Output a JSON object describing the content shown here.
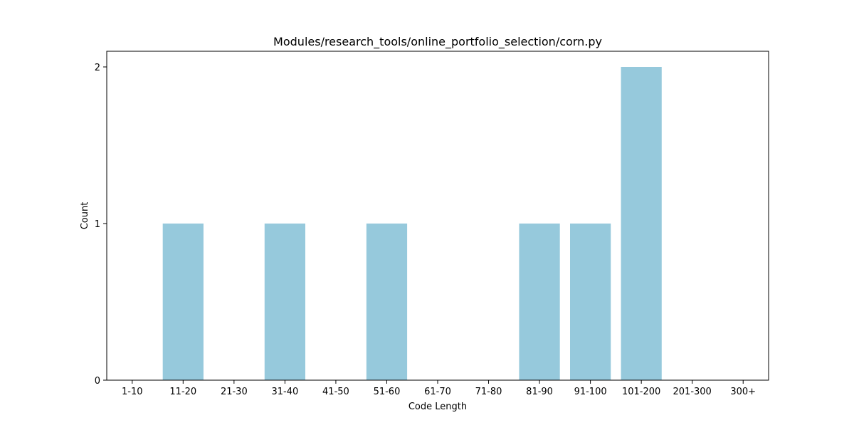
{
  "chart_data": {
    "type": "bar",
    "title": "Modules/research_tools/online_portfolio_selection/corn.py",
    "xlabel": "Code Length",
    "ylabel": "Count",
    "categories": [
      "1-10",
      "11-20",
      "21-30",
      "31-40",
      "41-50",
      "51-60",
      "61-70",
      "71-80",
      "81-90",
      "91-100",
      "101-200",
      "201-300",
      "300+"
    ],
    "values": [
      0,
      1,
      0,
      1,
      0,
      1,
      0,
      0,
      1,
      1,
      2,
      0,
      0
    ],
    "ylim": [
      0,
      2.1
    ],
    "yticks": [
      0,
      1,
      2
    ],
    "grid": false,
    "bar_color": "#96c9dc"
  }
}
